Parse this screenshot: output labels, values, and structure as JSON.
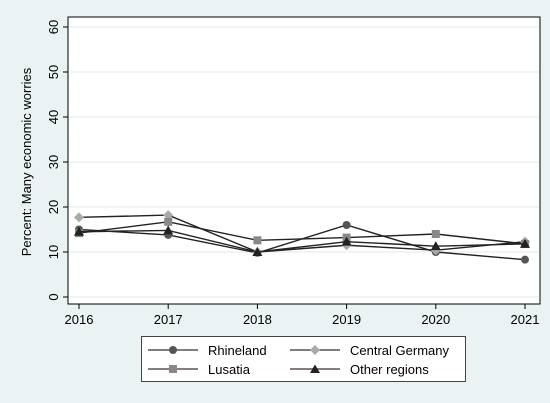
{
  "chart_data": {
    "type": "line",
    "ylabel": "Percent: Many economic worries",
    "xlabel": "",
    "x": [
      2016,
      2017,
      2018,
      2019,
      2020,
      2021
    ],
    "x_ticks": [
      "2016",
      "2017",
      "2018",
      "2019",
      "2020",
      "2021"
    ],
    "ylim": [
      0,
      60
    ],
    "y_ticks": [
      "0",
      "10",
      "20",
      "30",
      "40",
      "50",
      "60"
    ],
    "grid": true,
    "legend_position": "bottom",
    "series": [
      {
        "name": "Rhineland",
        "values": [
          15.0,
          13.8,
          9.8,
          16.0,
          10.0,
          8.3
        ],
        "marker": "circle",
        "color": "#555555"
      },
      {
        "name": "Central Germany",
        "values": [
          17.7,
          18.2,
          10.0,
          11.5,
          10.4,
          12.3
        ],
        "marker": "diamond",
        "color": "#aaaaaa"
      },
      {
        "name": "Lusatia",
        "values": [
          14.2,
          16.7,
          12.6,
          13.2,
          14.0,
          11.8
        ],
        "marker": "square",
        "color": "#888888"
      },
      {
        "name": "Other regions",
        "values": [
          14.5,
          14.8,
          10.0,
          12.3,
          11.3,
          11.8
        ],
        "marker": "triangle",
        "color": "#222222"
      }
    ]
  }
}
